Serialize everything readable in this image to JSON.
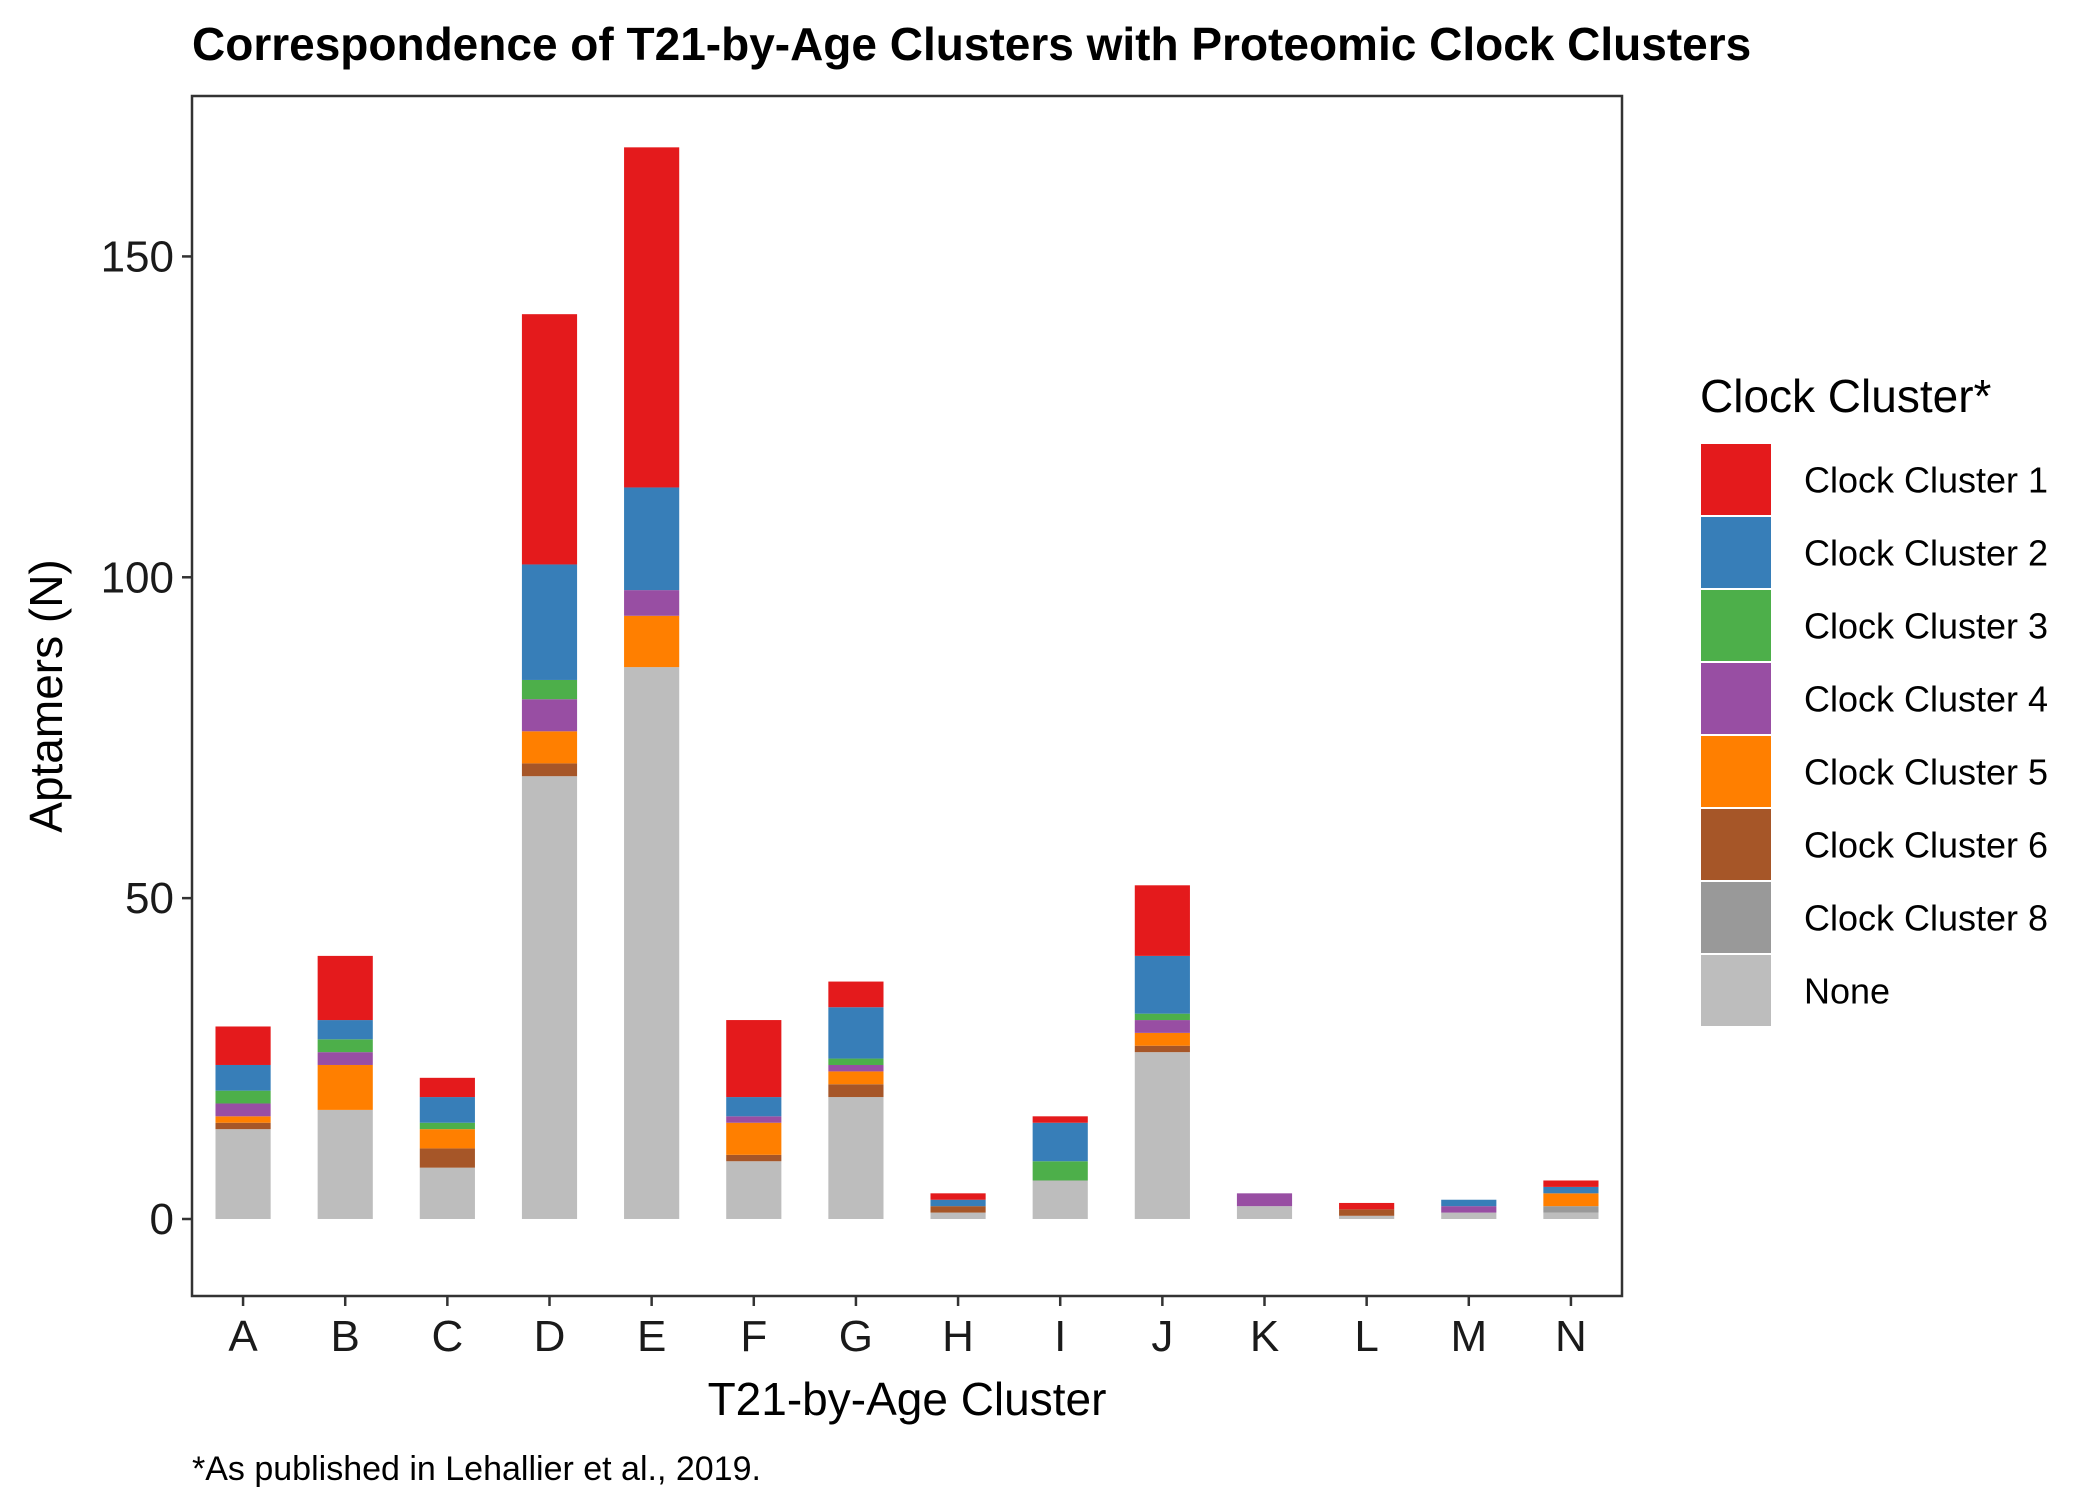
{
  "chart_data": {
    "type": "bar",
    "stacked": true,
    "title": "Correspondence of T21-by-Age Clusters with Proteomic Clock Clusters",
    "xlabel": "T21-by-Age Cluster",
    "ylabel": "Aptamers (N)",
    "ylim": [
      -12,
      175
    ],
    "yticks": [
      0,
      50,
      100,
      150
    ],
    "grid": false,
    "legend_position": "right",
    "legend_title": "Clock Cluster*",
    "footnote": "*As published in Lehallier et al., 2019.",
    "categories": [
      "A",
      "B",
      "C",
      "D",
      "E",
      "F",
      "G",
      "H",
      "I",
      "J",
      "K",
      "L",
      "M",
      "N"
    ],
    "series": [
      {
        "name": "None",
        "color": "#BDBDBD",
        "values": [
          14,
          17,
          8,
          69,
          86,
          9,
          19,
          1,
          6,
          26,
          2,
          0.5,
          1,
          1
        ]
      },
      {
        "name": "Clock Cluster 8",
        "color": "#999999",
        "values": [
          0,
          0,
          0,
          0,
          0,
          0,
          0,
          0,
          0,
          0,
          0,
          0,
          0,
          1
        ]
      },
      {
        "name": "Clock Cluster 6",
        "color": "#A65628",
        "values": [
          1,
          0,
          3,
          2,
          0,
          1,
          2,
          1,
          0,
          1,
          0,
          1,
          0,
          0
        ]
      },
      {
        "name": "Clock Cluster 5",
        "color": "#FF7F00",
        "values": [
          1,
          7,
          3,
          5,
          8,
          5,
          2,
          0,
          0,
          2,
          0,
          0,
          0,
          2
        ]
      },
      {
        "name": "Clock Cluster 4",
        "color": "#984EA3",
        "values": [
          2,
          2,
          0,
          5,
          4,
          1,
          1,
          0,
          0,
          2,
          2,
          0,
          1,
          0
        ]
      },
      {
        "name": "Clock Cluster 3",
        "color": "#4DAF4A",
        "values": [
          2,
          2,
          1,
          3,
          0,
          0,
          1,
          0,
          3,
          1,
          0,
          0,
          0,
          0
        ]
      },
      {
        "name": "Clock Cluster 2",
        "color": "#377EB8",
        "values": [
          4,
          3,
          4,
          18,
          16,
          3,
          8,
          1,
          6,
          9,
          0,
          0,
          1,
          1
        ]
      },
      {
        "name": "Clock Cluster 1",
        "color": "#E41A1C",
        "values": [
          6,
          10,
          3,
          39,
          53,
          12,
          4,
          1,
          1,
          11,
          0,
          1,
          0,
          1
        ]
      }
    ],
    "legend_order": [
      "Clock Cluster 1",
      "Clock Cluster 2",
      "Clock Cluster 3",
      "Clock Cluster 4",
      "Clock Cluster 5",
      "Clock Cluster 6",
      "Clock Cluster 8",
      "None"
    ]
  }
}
